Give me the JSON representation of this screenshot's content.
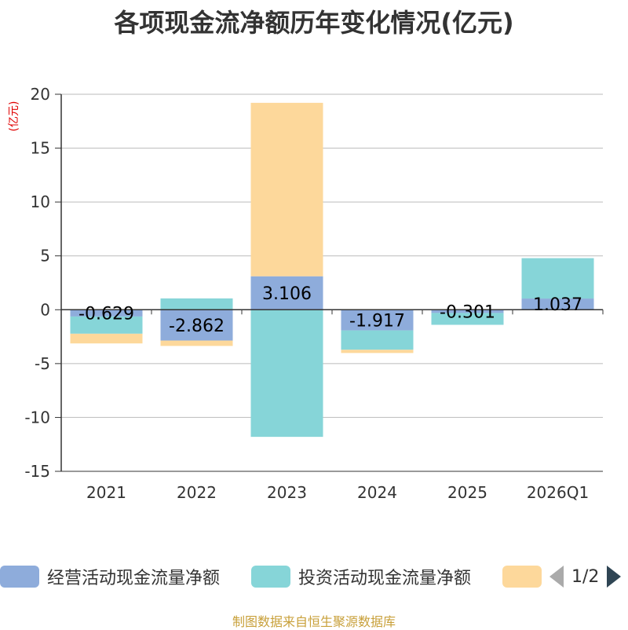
{
  "chart_data": {
    "type": "bar",
    "stacked": true,
    "title": "各项现金流净额历年变化情况(亿元)",
    "ylabel": "(亿元)",
    "categories": [
      "2021",
      "2022",
      "2023",
      "2024",
      "2025",
      "2026Q1"
    ],
    "ylim": [
      -15,
      20
    ],
    "yticks": [
      20,
      15,
      10,
      5,
      0,
      -5,
      -10,
      -15
    ],
    "series": [
      {
        "name": "经营活动现金流量净额",
        "color": "#8eacdb",
        "values": [
          -0.629,
          -2.862,
          3.106,
          -1.917,
          -0.301,
          1.037
        ],
        "labels": [
          "-0.629",
          "-2.862",
          "3.106",
          "-1.917",
          "-0.301",
          "1.037"
        ]
      },
      {
        "name": "投资活动现金流量净额",
        "color": "#86d5d8",
        "values": [
          -1.6,
          1.05,
          -11.8,
          -1.8,
          -1.1,
          3.75
        ]
      },
      {
        "name": "",
        "color": "#fdd89b",
        "values": [
          -0.9,
          -0.5,
          16.1,
          -0.3,
          0,
          0
        ]
      }
    ],
    "grid": true,
    "legend_position": "bottom"
  },
  "legend": {
    "pager_text": "1/2"
  },
  "source": "制图数据来自恒生聚源数据库"
}
